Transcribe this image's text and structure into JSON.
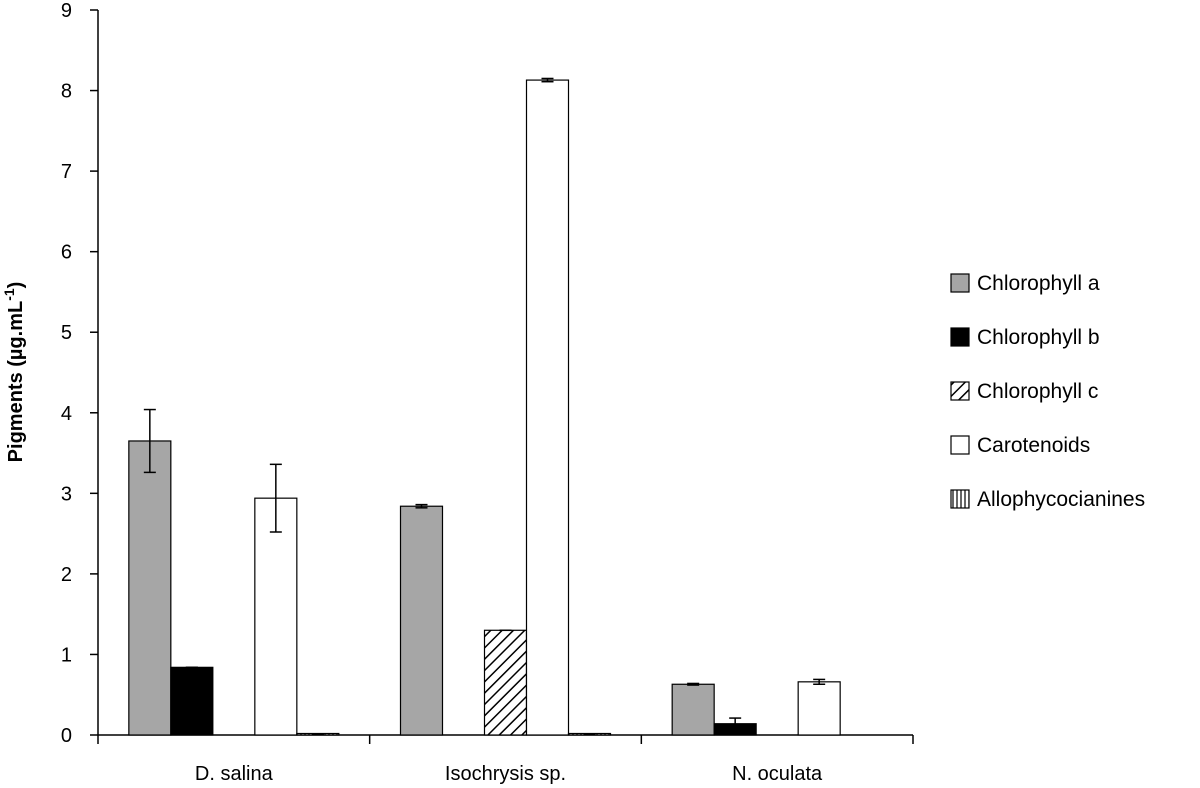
{
  "chart_data": {
    "type": "bar",
    "title": "",
    "xlabel": "",
    "ylabel": "Pigments (µg.mL",
    "ylabel_superscript": "-1",
    "ylabel_suffix": ")",
    "ylim": [
      0,
      9
    ],
    "yticks": [
      "0",
      "1",
      "2",
      "3",
      "4",
      "5",
      "6",
      "7",
      "8",
      "9"
    ],
    "grid": false,
    "legend_position": "right",
    "categories": [
      "D. salina",
      "Isochrysis sp.",
      "N. oculata"
    ],
    "series": [
      {
        "name": "Chlorophyll a",
        "pattern": "gray",
        "values": [
          3.65,
          2.84,
          0.63
        ],
        "errors": [
          0.39,
          0.02,
          0.01
        ]
      },
      {
        "name": "Chlorophyll b",
        "pattern": "black",
        "values": [
          0.84,
          0,
          0.14
        ],
        "errors": [
          0,
          0,
          0.07
        ]
      },
      {
        "name": "Chlorophyll c",
        "pattern": "diagonal",
        "values": [
          0,
          1.3,
          0
        ],
        "errors": [
          0,
          0,
          0
        ]
      },
      {
        "name": "Carotenoids",
        "pattern": "white",
        "values": [
          2.94,
          8.13,
          0.66
        ],
        "errors": [
          0.42,
          0.02,
          0.03
        ]
      },
      {
        "name": "Allophycocianines",
        "pattern": "vertical",
        "values": [
          0.01,
          0.01,
          0
        ],
        "errors": [
          0,
          0,
          0
        ]
      }
    ],
    "colors": {
      "gray": "#a6a6a6",
      "black": "#000000",
      "axis": "#000000"
    }
  }
}
